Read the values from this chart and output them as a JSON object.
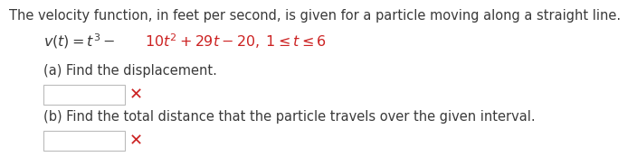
{
  "bg_color": "#ffffff",
  "text_color": "#3a3a3a",
  "red_color": "#cc2222",
  "line1": "The velocity function, in feet per second, is given for a particle moving along a straight line.",
  "part_a": "(a) Find the displacement.",
  "part_b": "(b) Find the total distance that the particle travels over the given interval.",
  "font_size_main": 10.5,
  "font_size_eq": 11.5
}
